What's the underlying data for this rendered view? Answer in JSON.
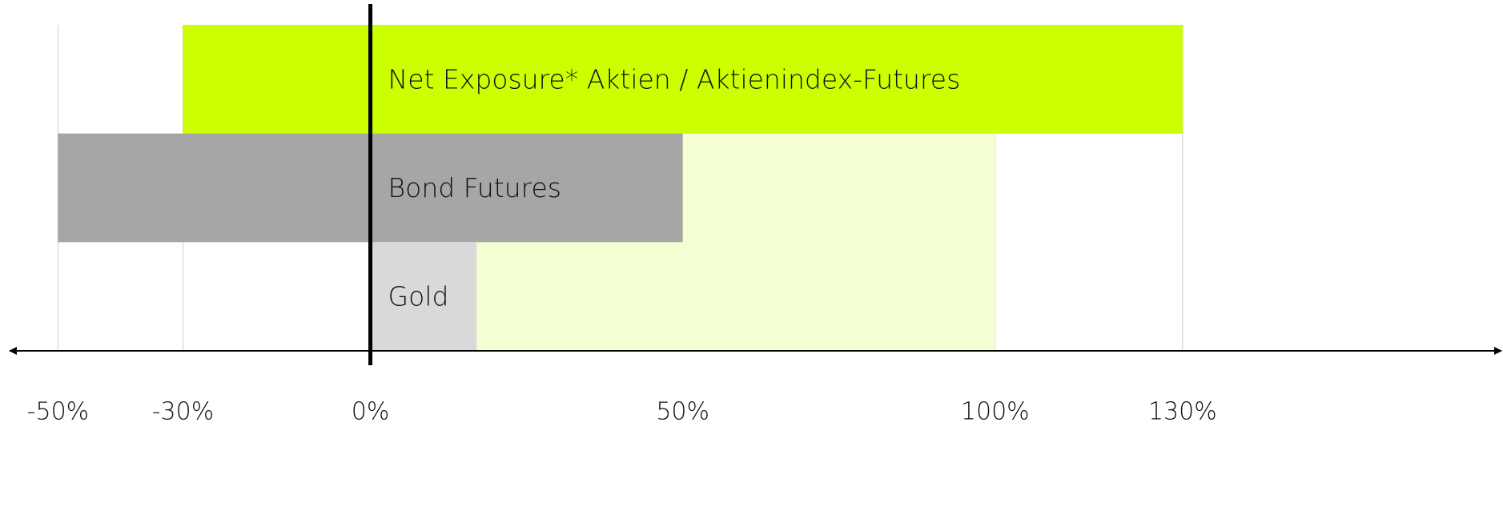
{
  "chart_data": {
    "type": "range-bar",
    "bars": [
      {
        "name": "Net Exposure* Aktien / Aktienindex-Futures",
        "start": -30,
        "end": 130,
        "color": "#ccff00"
      },
      {
        "name": "Bond Futures",
        "start": -50,
        "end": 50,
        "color": "#a6a6a6"
      },
      {
        "name": "Gold",
        "start": 0,
        "end": 17,
        "color": "#d9d9d9"
      }
    ],
    "band": {
      "start": 0,
      "end": 100,
      "color": "#f3ffd2"
    },
    "xlim": [
      -58,
      180
    ],
    "xticks": [
      {
        "value": -50,
        "label": "-50%"
      },
      {
        "value": -30,
        "label": "-30%"
      },
      {
        "value": 0,
        "label": "0%"
      },
      {
        "value": 50,
        "label": "50%"
      },
      {
        "value": 100,
        "label": "100%"
      },
      {
        "value": 130,
        "label": "130%"
      }
    ],
    "grid": true
  }
}
